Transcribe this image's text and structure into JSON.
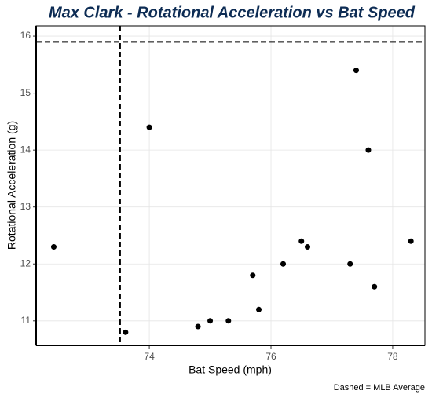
{
  "chart_data": {
    "type": "scatter",
    "title": "Max Clark - Rotational Acceleration vs Bat Speed",
    "x_label": "Bat Speed (mph)",
    "y_label": "Rotational Acceleration (g)",
    "caption": "Dashed = MLB Average",
    "x": [
      72.43,
      73.61,
      74.0,
      74.8,
      75.0,
      75.3,
      75.7,
      75.8,
      76.2,
      76.5,
      76.6,
      77.3,
      77.4,
      77.6,
      77.7,
      78.3
    ],
    "y": [
      12.3,
      10.8,
      14.4,
      10.9,
      11.0,
      11.0,
      11.8,
      11.2,
      12.0,
      12.4,
      12.3,
      12.0,
      15.4,
      14.0,
      11.6,
      12.4
    ],
    "color": "#000000",
    "reference_x": 73.52,
    "reference_y": 15.9,
    "xlim": [
      72.14,
      78.53
    ],
    "ylim": [
      10.57,
      16.18
    ],
    "xticks": [
      74,
      76,
      78
    ],
    "yticks": [
      11,
      12,
      13,
      14,
      15,
      16
    ],
    "grid": true
  }
}
